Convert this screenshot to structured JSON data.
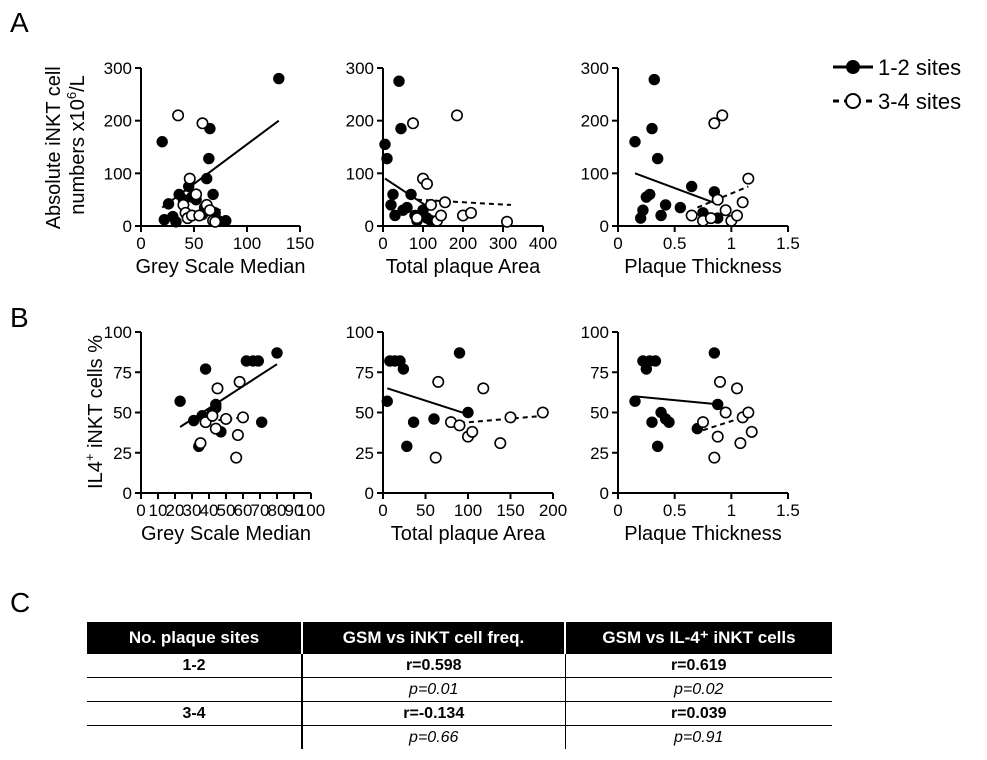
{
  "panel_labels": [
    "A",
    "B",
    "C"
  ],
  "legend": {
    "solid": "1-2 sites",
    "dashed": "3-4 sites"
  },
  "chart_data": [
    {
      "type": "scatter",
      "panel": "A",
      "xlabel": "Grey Scale Median",
      "ylabel_parts": [
        "Absolute iNKT cell",
        "numbers x10",
        "6",
        "/L"
      ],
      "xlim": [
        0,
        150
      ],
      "ylim": [
        0,
        300
      ],
      "xticks": [
        0,
        50,
        100,
        150
      ],
      "yticks": [
        0,
        100,
        200,
        300
      ],
      "tick_labels_x": [
        "0",
        "50",
        "100",
        "150"
      ],
      "tick_labels_y": [
        "0",
        "100",
        "200",
        "300"
      ],
      "series": [
        {
          "name": "1-2 sites",
          "marker": "filled",
          "points": [
            [
              20,
              160
            ],
            [
              22,
              12
            ],
            [
              26,
              42
            ],
            [
              30,
              18
            ],
            [
              33,
              8
            ],
            [
              36,
              60
            ],
            [
              40,
              50
            ],
            [
              45,
              75
            ],
            [
              48,
              55
            ],
            [
              52,
              50
            ],
            [
              58,
              22
            ],
            [
              60,
              35
            ],
            [
              62,
              90
            ],
            [
              64,
              128
            ],
            [
              65,
              185
            ],
            [
              68,
              60
            ],
            [
              70,
              25
            ],
            [
              73,
              10
            ],
            [
              80,
              10
            ],
            [
              130,
              280
            ]
          ],
          "fit": [
            [
              20,
              35
            ],
            [
              130,
              200
            ]
          ]
        },
        {
          "name": "3-4 sites",
          "marker": "open",
          "points": [
            [
              35,
              210
            ],
            [
              40,
              40
            ],
            [
              42,
              25
            ],
            [
              44,
              15
            ],
            [
              46,
              90
            ],
            [
              48,
              20
            ],
            [
              52,
              60
            ],
            [
              55,
              20
            ],
            [
              58,
              195
            ],
            [
              62,
              40
            ],
            [
              65,
              30
            ],
            [
              68,
              10
            ],
            [
              70,
              8
            ]
          ],
          "fit": [
            [
              35,
              65
            ],
            [
              75,
              30
            ]
          ]
        }
      ]
    },
    {
      "type": "scatter",
      "panel": "A",
      "xlabel": "Total plaque Area",
      "xlim": [
        0,
        400
      ],
      "ylim": [
        0,
        300
      ],
      "xticks": [
        0,
        100,
        200,
        300,
        400
      ],
      "yticks": [
        0,
        100,
        200,
        300
      ],
      "tick_labels_x": [
        "0",
        "100",
        "200",
        "300",
        "400"
      ],
      "tick_labels_y": [
        "0",
        "100",
        "200",
        "300"
      ],
      "series": [
        {
          "name": "1-2 sites",
          "marker": "filled",
          "points": [
            [
              5,
              155
            ],
            [
              10,
              128
            ],
            [
              20,
              40
            ],
            [
              25,
              60
            ],
            [
              30,
              20
            ],
            [
              40,
              275
            ],
            [
              45,
              185
            ],
            [
              50,
              30
            ],
            [
              60,
              35
            ],
            [
              70,
              60
            ],
            [
              80,
              20
            ],
            [
              85,
              10
            ],
            [
              100,
              30
            ],
            [
              110,
              15
            ],
            [
              120,
              10
            ]
          ],
          "fit": [
            [
              5,
              90
            ],
            [
              115,
              35
            ]
          ]
        },
        {
          "name": "3-4 sites",
          "marker": "open",
          "points": [
            [
              75,
              195
            ],
            [
              85,
              15
            ],
            [
              100,
              90
            ],
            [
              110,
              80
            ],
            [
              120,
              40
            ],
            [
              135,
              10
            ],
            [
              145,
              20
            ],
            [
              155,
              45
            ],
            [
              185,
              210
            ],
            [
              200,
              20
            ],
            [
              220,
              25
            ],
            [
              310,
              8
            ]
          ],
          "fit": [
            [
              85,
              50
            ],
            [
              320,
              40
            ]
          ]
        }
      ]
    },
    {
      "type": "scatter",
      "panel": "A",
      "xlabel": "Plaque Thickness",
      "xlim": [
        0,
        1.5
      ],
      "ylim": [
        0,
        300
      ],
      "xticks": [
        0,
        0.5,
        1.0,
        1.5
      ],
      "yticks": [
        0,
        100,
        200,
        300
      ],
      "tick_labels_x": [
        "0",
        "0.5",
        "1",
        "1.5"
      ],
      "tick_labels_y": [
        "0",
        "100",
        "200",
        "300"
      ],
      "series": [
        {
          "name": "1-2 sites",
          "marker": "filled",
          "points": [
            [
              0.15,
              160
            ],
            [
              0.2,
              15
            ],
            [
              0.22,
              30
            ],
            [
              0.25,
              55
            ],
            [
              0.28,
              60
            ],
            [
              0.3,
              185
            ],
            [
              0.32,
              278
            ],
            [
              0.35,
              128
            ],
            [
              0.38,
              20
            ],
            [
              0.42,
              40
            ],
            [
              0.55,
              35
            ],
            [
              0.65,
              75
            ],
            [
              0.75,
              25
            ],
            [
              0.85,
              65
            ],
            [
              0.88,
              15
            ]
          ],
          "fit": [
            [
              0.15,
              100
            ],
            [
              0.9,
              40
            ]
          ]
        },
        {
          "name": "3-4 sites",
          "marker": "open",
          "points": [
            [
              0.65,
              20
            ],
            [
              0.75,
              10
            ],
            [
              0.82,
              15
            ],
            [
              0.85,
              195
            ],
            [
              0.88,
              50
            ],
            [
              0.92,
              210
            ],
            [
              0.95,
              30
            ],
            [
              1.0,
              10
            ],
            [
              1.05,
              20
            ],
            [
              1.1,
              45
            ],
            [
              1.15,
              90
            ]
          ],
          "fit": [
            [
              0.7,
              35
            ],
            [
              1.15,
              75
            ]
          ]
        }
      ]
    },
    {
      "type": "scatter",
      "panel": "B",
      "xlabel": "Grey Scale Median",
      "ylabel_parts": [
        "IL4",
        "+",
        " iNKT cells %"
      ],
      "xlim": [
        0,
        100
      ],
      "ylim": [
        0,
        100
      ],
      "xticks": [
        0,
        10,
        20,
        30,
        40,
        50,
        60,
        70,
        80,
        90,
        100
      ],
      "yticks": [
        0,
        25,
        50,
        75,
        100
      ],
      "tick_labels_x": [
        "0",
        "10",
        "20",
        "30",
        "40",
        "50",
        "60",
        "70",
        "80",
        "90",
        "100"
      ],
      "tick_labels_y": [
        "0",
        "25",
        "50",
        "75",
        "100"
      ],
      "series": [
        {
          "name": "1-2 sites",
          "marker": "filled",
          "points": [
            [
              23,
              57
            ],
            [
              31,
              45
            ],
            [
              34,
              29
            ],
            [
              36,
              48
            ],
            [
              38,
              77
            ],
            [
              42,
              50
            ],
            [
              44,
              53
            ],
            [
              44,
              55
            ],
            [
              47,
              38
            ],
            [
              62,
              82
            ],
            [
              66,
              82
            ],
            [
              69,
              82
            ],
            [
              71,
              44
            ],
            [
              80,
              87
            ]
          ],
          "fit": [
            [
              23,
              41
            ],
            [
              80,
              80
            ]
          ]
        },
        {
          "name": "3-4 sites",
          "marker": "open",
          "points": [
            [
              35,
              31
            ],
            [
              38,
              44
            ],
            [
              42,
              48
            ],
            [
              44,
              40
            ],
            [
              45,
              65
            ],
            [
              50,
              46
            ],
            [
              56,
              22
            ],
            [
              57,
              36
            ],
            [
              58,
              69
            ],
            [
              60,
              47
            ]
          ],
          "fit": [
            [
              35,
              44
            ],
            [
              60,
              47
            ]
          ]
        }
      ]
    },
    {
      "type": "scatter",
      "panel": "B",
      "xlabel": "Total plaque Area",
      "xlim": [
        0,
        200
      ],
      "ylim": [
        0,
        100
      ],
      "xticks": [
        0,
        50,
        100,
        150,
        200
      ],
      "yticks": [
        0,
        25,
        50,
        75,
        100
      ],
      "tick_labels_x": [
        "0",
        "50",
        "100",
        "150",
        "200"
      ],
      "tick_labels_y": [
        "0",
        "25",
        "50",
        "75",
        "100"
      ],
      "series": [
        {
          "name": "1-2 sites",
          "marker": "filled",
          "points": [
            [
              5,
              57
            ],
            [
              8,
              82
            ],
            [
              14,
              82
            ],
            [
              20,
              82
            ],
            [
              24,
              77
            ],
            [
              28,
              29
            ],
            [
              36,
              44
            ],
            [
              60,
              46
            ],
            [
              90,
              87
            ],
            [
              100,
              50
            ]
          ],
          "fit": [
            [
              5,
              65
            ],
            [
              105,
              48
            ]
          ]
        },
        {
          "name": "3-4 sites",
          "marker": "open",
          "points": [
            [
              62,
              22
            ],
            [
              65,
              69
            ],
            [
              80,
              44
            ],
            [
              90,
              42
            ],
            [
              100,
              35
            ],
            [
              105,
              38
            ],
            [
              118,
              65
            ],
            [
              138,
              31
            ],
            [
              150,
              47
            ],
            [
              188,
              50
            ]
          ],
          "fit": [
            [
              80,
              43
            ],
            [
              190,
              48
            ]
          ]
        }
      ]
    },
    {
      "type": "scatter",
      "panel": "B",
      "xlabel": "Plaque Thickness",
      "xlim": [
        0,
        1.5
      ],
      "ylim": [
        0,
        100
      ],
      "xticks": [
        0,
        0.5,
        1.0,
        1.5
      ],
      "yticks": [
        0,
        25,
        50,
        75,
        100
      ],
      "tick_labels_x": [
        "0",
        "0.5",
        "1",
        "1.5"
      ],
      "tick_labels_y": [
        "0",
        "25",
        "50",
        "75",
        "100"
      ],
      "series": [
        {
          "name": "1-2 sites",
          "marker": "filled",
          "points": [
            [
              0.15,
              57
            ],
            [
              0.22,
              82
            ],
            [
              0.25,
              77
            ],
            [
              0.28,
              82
            ],
            [
              0.3,
              44
            ],
            [
              0.33,
              82
            ],
            [
              0.35,
              29
            ],
            [
              0.38,
              50
            ],
            [
              0.42,
              46
            ],
            [
              0.45,
              44
            ],
            [
              0.7,
              40
            ],
            [
              0.85,
              87
            ],
            [
              0.88,
              55
            ]
          ],
          "fit": [
            [
              0.15,
              60
            ],
            [
              0.9,
              55
            ]
          ]
        },
        {
          "name": "3-4 sites",
          "marker": "open",
          "points": [
            [
              0.75,
              44
            ],
            [
              0.85,
              22
            ],
            [
              0.88,
              35
            ],
            [
              0.9,
              69
            ],
            [
              0.95,
              50
            ],
            [
              1.05,
              65
            ],
            [
              1.08,
              31
            ],
            [
              1.1,
              47
            ],
            [
              1.15,
              50
            ],
            [
              1.18,
              38
            ]
          ],
          "fit": [
            [
              0.75,
              39
            ],
            [
              1.15,
              48
            ]
          ]
        }
      ]
    }
  ],
  "table": {
    "headers": [
      "No. plaque sites",
      "GSM vs iNKT cell freq.",
      "GSM vs IL-4⁺ iNKT cells"
    ],
    "rows": [
      {
        "kind": "r",
        "cells": [
          "1-2",
          "r=0.598",
          "r=0.619"
        ]
      },
      {
        "kind": "p",
        "cells": [
          "",
          "p=0.01",
          "p=0.02"
        ]
      },
      {
        "kind": "r",
        "cells": [
          "3-4",
          "r=-0.134",
          "r=0.039"
        ]
      },
      {
        "kind": "p",
        "cells": [
          "",
          "p=0.66",
          "p=0.91"
        ]
      }
    ]
  }
}
